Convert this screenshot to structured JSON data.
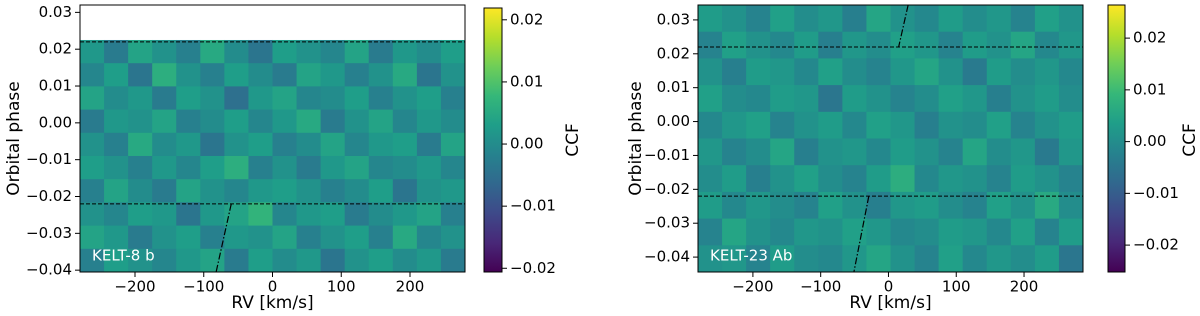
{
  "chart_data": [
    {
      "type": "heatmap",
      "xlabel": "RV [km/s]",
      "ylabel": "Orbital phase",
      "colorbar_label": "CCF",
      "annotation": "KELT-8 b",
      "colormap": "viridis",
      "xlim": [
        -280,
        280
      ],
      "ylim": [
        -0.0405,
        0.032
      ],
      "extent_y": [
        -0.0405,
        0.0225
      ],
      "xticks": [
        {
          "value": -200,
          "label": "−200"
        },
        {
          "value": -100,
          "label": "−100"
        },
        0,
        100,
        200
      ],
      "yticks": [
        0.03,
        0.02,
        0.01,
        {
          "value": 0,
          "label": "0.00"
        },
        {
          "value": -0.01,
          "label": "−0.01"
        },
        {
          "value": -0.02,
          "label": "−0.02"
        },
        {
          "value": -0.03,
          "label": "−0.03"
        },
        {
          "value": -0.04,
          "label": "−0.04"
        }
      ],
      "clim": [
        -0.0206,
        0.0219
      ],
      "cticks": [
        0.02,
        0.01,
        {
          "value": 0,
          "label": "0.00"
        },
        {
          "value": -0.01,
          "label": "−0.01"
        },
        {
          "value": -0.02,
          "label": "−0.02"
        }
      ],
      "hlines": [
        0.022,
        -0.022
      ],
      "trails": [
        {
          "x": [
            -60,
            -82
          ],
          "y": [
            -0.022,
            -0.0405
          ]
        }
      ],
      "z": [
        [
          0.002,
          -0.003,
          0.004,
          0.001,
          -0.002,
          0.005,
          0.0,
          -0.004,
          0.003,
          0.001,
          -0.001,
          0.004,
          -0.003,
          0.002,
          0.0,
          0.003
        ],
        [
          -0.001,
          0.003,
          -0.004,
          0.006,
          0.001,
          -0.002,
          0.003,
          0.0,
          -0.003,
          0.004,
          0.002,
          -0.002,
          0.001,
          0.005,
          -0.004,
          0.001
        ],
        [
          0.004,
          0.0,
          0.002,
          -0.003,
          0.003,
          0.001,
          -0.005,
          0.002,
          0.004,
          -0.001,
          0.0,
          0.003,
          -0.002,
          0.001,
          0.003,
          -0.002
        ],
        [
          -0.003,
          0.002,
          0.001,
          0.004,
          -0.002,
          0.0,
          0.003,
          -0.001,
          0.002,
          0.005,
          -0.003,
          0.001,
          0.004,
          -0.001,
          0.002,
          0.0
        ],
        [
          0.001,
          -0.002,
          0.005,
          0.0,
          0.002,
          -0.004,
          0.001,
          0.003,
          -0.002,
          0.0,
          0.004,
          -0.001,
          0.002,
          0.003,
          -0.003,
          0.004
        ],
        [
          0.003,
          0.001,
          -0.002,
          0.002,
          -0.001,
          0.003,
          0.006,
          -0.002,
          0.001,
          -0.003,
          0.002,
          0.004,
          -0.001,
          0.0,
          0.002,
          -0.001
        ],
        [
          -0.002,
          0.004,
          0.0,
          -0.003,
          0.004,
          0.001,
          -0.001,
          0.002,
          0.003,
          0.001,
          -0.002,
          0.0,
          0.003,
          -0.004,
          0.001,
          0.002
        ],
        [
          0.001,
          -0.001,
          0.003,
          0.002,
          -0.004,
          0.002,
          0.004,
          0.007,
          -0.001,
          0.002,
          0.003,
          -0.003,
          0.0,
          0.002,
          0.004,
          -0.002
        ],
        [
          0.004,
          0.002,
          -0.003,
          0.001,
          0.003,
          -0.002,
          0.002,
          0.001,
          0.004,
          -0.002,
          0.001,
          0.003,
          -0.002,
          0.005,
          -0.001,
          0.001
        ],
        [
          -0.002,
          0.003,
          0.001,
          -0.001,
          0.002,
          0.004,
          -0.003,
          0.003,
          0.0,
          0.002,
          -0.004,
          0.001,
          0.003,
          0.0,
          0.002,
          -0.003
        ]
      ]
    },
    {
      "type": "heatmap",
      "xlabel": "RV [km/s]",
      "ylabel": "Orbital phase",
      "colorbar_label": "CCF",
      "annotation": "KELT-23 Ab",
      "colormap": "viridis",
      "xlim": [
        -281,
        287
      ],
      "ylim": [
        -0.0444,
        0.0344
      ],
      "extent_y": [
        -0.0444,
        0.0344
      ],
      "xticks": [
        {
          "value": -200,
          "label": "−200"
        },
        {
          "value": -100,
          "label": "−100"
        },
        0,
        100,
        200
      ],
      "yticks": [
        0.03,
        0.02,
        0.01,
        {
          "value": 0,
          "label": "0.00"
        },
        {
          "value": -0.01,
          "label": "−0.01"
        },
        {
          "value": -0.02,
          "label": "−0.02"
        },
        {
          "value": -0.03,
          "label": "−0.03"
        },
        {
          "value": -0.04,
          "label": "−0.04"
        }
      ],
      "clim": [
        -0.0252,
        0.0264
      ],
      "cticks": [
        0.02,
        0.01,
        {
          "value": 0,
          "label": "0.00"
        },
        {
          "value": -0.01,
          "label": "−0.01"
        },
        {
          "value": -0.02,
          "label": "−0.02"
        }
      ],
      "hlines": [
        0.022,
        -0.022
      ],
      "trails": [
        {
          "x": [
            29,
            15
          ],
          "y": [
            0.0344,
            0.022
          ]
        },
        {
          "x": [
            -29,
            -51
          ],
          "y": [
            -0.022,
            -0.0444
          ]
        }
      ],
      "z": [
        [
          0.003,
          0.001,
          -0.002,
          0.004,
          0.0,
          0.002,
          -0.003,
          0.005,
          0.001,
          -0.001,
          0.003,
          0.0,
          0.002,
          -0.002,
          0.004,
          0.001
        ],
        [
          -0.002,
          0.004,
          0.001,
          -0.001,
          0.003,
          -0.003,
          0.002,
          0.0,
          0.004,
          0.002,
          -0.002,
          0.003,
          0.001,
          0.005,
          -0.001,
          0.002
        ],
        [
          0.001,
          -0.003,
          0.003,
          0.002,
          -0.001,
          0.004,
          0.0,
          -0.002,
          0.002,
          0.005,
          0.001,
          -0.004,
          0.003,
          0.0,
          0.002,
          -0.001
        ],
        [
          0.004,
          0.0,
          -0.001,
          0.003,
          0.002,
          -0.005,
          0.003,
          0.001,
          -0.002,
          0.0,
          0.004,
          0.002,
          -0.003,
          0.001,
          0.003,
          0.0
        ],
        [
          -0.001,
          0.002,
          0.004,
          -0.002,
          0.001,
          0.003,
          -0.001,
          0.004,
          0.002,
          -0.003,
          0.001,
          0.0,
          0.004,
          -0.002,
          0.001,
          0.003
        ],
        [
          0.002,
          -0.002,
          0.0,
          0.005,
          -0.003,
          0.001,
          0.002,
          -0.001,
          0.003,
          0.001,
          -0.002,
          0.005,
          0.0,
          0.002,
          -0.004,
          0.002
        ],
        [
          0.0,
          0.003,
          -0.003,
          0.001,
          0.004,
          0.0,
          -0.002,
          0.003,
          0.007,
          -0.001,
          0.002,
          0.001,
          -0.002,
          0.003,
          0.001,
          -0.002
        ],
        [
          0.003,
          -0.001,
          0.002,
          0.0,
          -0.002,
          0.004,
          0.001,
          -0.003,
          0.002,
          0.003,
          0.0,
          -0.002,
          0.004,
          0.001,
          0.006,
          0.0
        ],
        [
          -0.002,
          0.005,
          0.001,
          -0.001,
          0.002,
          0.001,
          0.004,
          0.002,
          -0.001,
          0.0,
          0.003,
          0.002,
          -0.001,
          0.004,
          -0.002,
          0.003
        ],
        [
          0.001,
          0.002,
          -0.002,
          0.003,
          0.0,
          -0.001,
          0.002,
          0.005,
          0.001,
          -0.002,
          0.004,
          -0.001,
          0.002,
          0.0,
          0.003,
          -0.005
        ]
      ]
    }
  ]
}
